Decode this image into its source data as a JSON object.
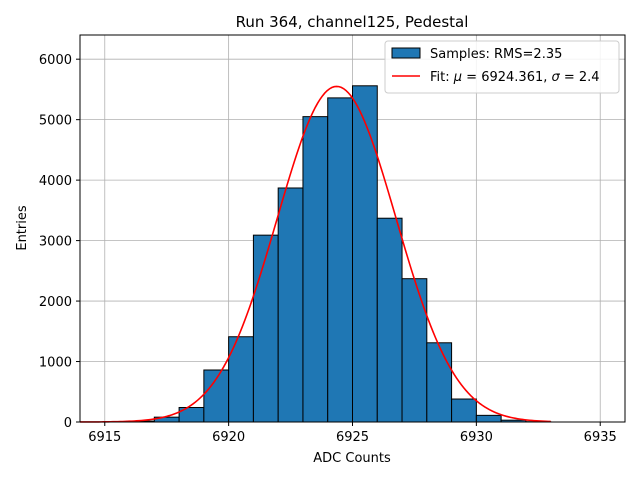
{
  "chart_data": {
    "type": "bar",
    "title": "Run 364, channel125, Pedestal",
    "xlabel": "ADC Counts",
    "ylabel": "Entries",
    "xlim": [
      6914,
      6936
    ],
    "ylim": [
      0,
      6400
    ],
    "xticks": [
      6915,
      6920,
      6925,
      6930,
      6935
    ],
    "yticks": [
      0,
      1000,
      2000,
      3000,
      4000,
      5000,
      6000
    ],
    "grid": true,
    "legend_position": "top-right",
    "histogram": {
      "name": "Samples: RMS=2.35",
      "color": "#1f77b4",
      "edgecolor": "#000000",
      "bins": [
        {
          "left": 6915,
          "right": 6916,
          "count": 5
        },
        {
          "left": 6916,
          "right": 6917,
          "count": 15
        },
        {
          "left": 6917,
          "right": 6918,
          "count": 80
        },
        {
          "left": 6918,
          "right": 6919,
          "count": 240
        },
        {
          "left": 6919,
          "right": 6920,
          "count": 860
        },
        {
          "left": 6920,
          "right": 6921,
          "count": 1410
        },
        {
          "left": 6921,
          "right": 6922,
          "count": 3090
        },
        {
          "left": 6922,
          "right": 6923,
          "count": 3870
        },
        {
          "left": 6923,
          "right": 6924,
          "count": 5050
        },
        {
          "left": 6924,
          "right": 6925,
          "count": 5360
        },
        {
          "left": 6925,
          "right": 6926,
          "count": 5560
        },
        {
          "left": 6926,
          "right": 6927,
          "count": 3370
        },
        {
          "left": 6927,
          "right": 6928,
          "count": 2370
        },
        {
          "left": 6928,
          "right": 6929,
          "count": 1310
        },
        {
          "left": 6929,
          "right": 6930,
          "count": 380
        },
        {
          "left": 6930,
          "right": 6931,
          "count": 110
        },
        {
          "left": 6931,
          "right": 6932,
          "count": 30
        },
        {
          "left": 6932,
          "right": 6933,
          "count": 5
        }
      ]
    },
    "fit": {
      "name_prefix": "Fit: ",
      "mu_symbol": "μ",
      "mu_text": " = 6924.361, ",
      "sigma_symbol": "σ",
      "sigma_text": " = 2.4",
      "mu": 6924.361,
      "sigma": 2.4,
      "amplitude": 5550,
      "x_range": [
        6914,
        6933
      ],
      "color": "#ff0000"
    }
  }
}
